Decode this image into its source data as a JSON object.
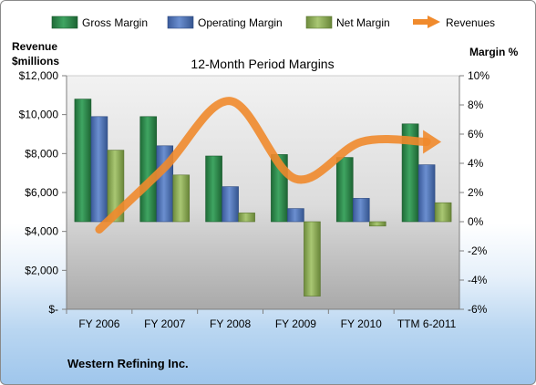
{
  "chart_data": {
    "type": "bar",
    "title": "12-Month Period Margins",
    "company": "Western Refining Inc.",
    "categories": [
      "FY 2006",
      "FY 2007",
      "FY 2008",
      "FY 2009",
      "FY 2010",
      "TTM 6-2011"
    ],
    "left_axis": {
      "label_line1": "Revenue",
      "label_line2": "$millions",
      "range": [
        0,
        12000
      ],
      "ticks": [
        "$-",
        "$2,000",
        "$4,000",
        "$6,000",
        "$8,000",
        "$10,000",
        "$12,000"
      ]
    },
    "right_axis": {
      "label": "Margin %",
      "range": [
        -6,
        10
      ],
      "ticks": [
        "-6%",
        "-4%",
        "-2%",
        "0%",
        "2%",
        "4%",
        "6%",
        "8%",
        "10%"
      ]
    },
    "series": [
      {
        "name": "Gross Margin",
        "axis": "right",
        "color": "#2e8a4d",
        "values": [
          8.4,
          7.2,
          4.5,
          4.6,
          4.4,
          6.7
        ]
      },
      {
        "name": "Operating Margin",
        "axis": "right",
        "color": "#4f72b8",
        "values": [
          7.2,
          5.2,
          2.4,
          0.9,
          1.6,
          3.9
        ]
      },
      {
        "name": "Net Margin",
        "axis": "right",
        "color": "#8fb05a",
        "values": [
          4.9,
          3.2,
          0.6,
          -5.1,
          -0.3,
          1.3
        ]
      },
      {
        "name": "Revenues",
        "axis": "left",
        "type": "line",
        "color": "#f08a2c",
        "values": [
          4100,
          7300,
          10700,
          6700,
          8600,
          8600
        ]
      }
    ],
    "legend_position": "top",
    "grid": false
  }
}
